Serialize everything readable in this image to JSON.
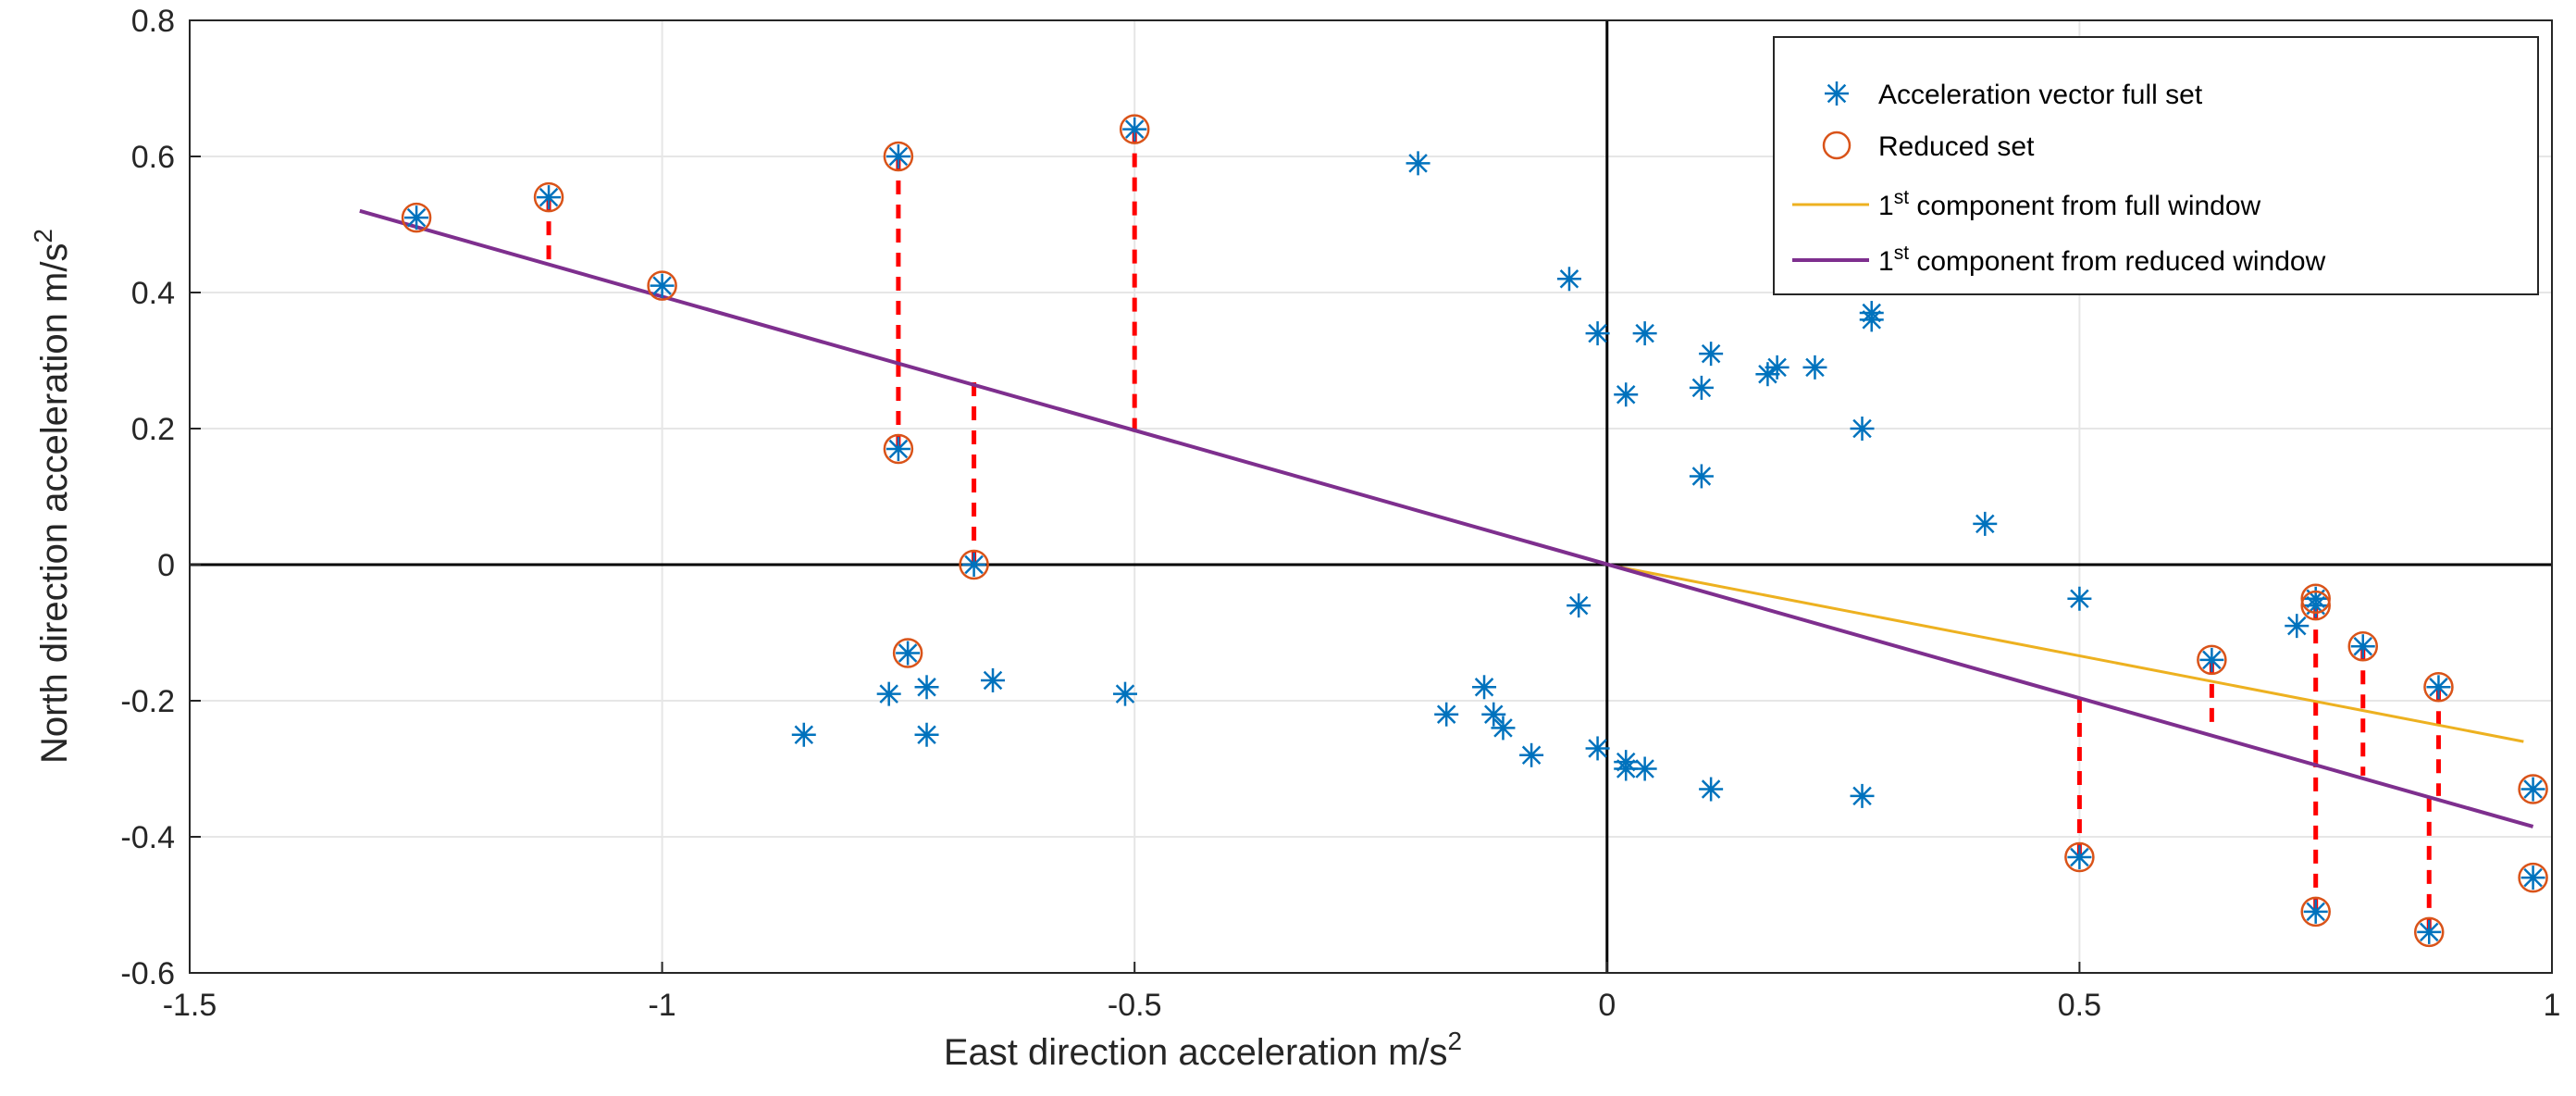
{
  "chart_data": {
    "type": "scatter",
    "title": "",
    "xlabel": "East direction acceleration m/s",
    "xlabel_sup": "2",
    "ylabel": "North direction acceleration m/s",
    "ylabel_sup": "2",
    "xlim": [
      -1.5,
      1.0
    ],
    "ylim": [
      -0.6,
      0.8
    ],
    "xticks": [
      -1.5,
      -1.0,
      -0.5,
      0.0,
      0.5,
      1.0
    ],
    "xtick_labels": [
      "-1.5",
      "-1",
      "-0.5",
      "0",
      "0.5",
      "1"
    ],
    "yticks": [
      -0.6,
      -0.4,
      -0.2,
      0.0,
      0.2,
      0.4,
      0.6,
      0.8
    ],
    "ytick_labels": [
      "-0.6",
      "-0.4",
      "-0.2",
      "0",
      "0.2",
      "0.4",
      "0.6",
      "0.8"
    ],
    "grid": true,
    "legend_position": "top-right",
    "colors": {
      "full_set": "#0072BD",
      "reduced_set": "#D95319",
      "full_component": "#EDB120",
      "reduced_component": "#7E2F8E",
      "residual": "#FF0000",
      "axis": "#000000",
      "grid": "#e6e6e6"
    },
    "legend": [
      {
        "label": "Acceleration vector full set"
      },
      {
        "label": "Reduced set"
      },
      {
        "label_pre": "1",
        "label_sup": "st",
        "label_post": " component from full window"
      },
      {
        "label_pre": "1",
        "label_sup": "st",
        "label_post": " component from reduced window"
      }
    ],
    "series": [
      {
        "name": "Acceleration vector full set",
        "marker": "asterisk",
        "points": [
          [
            -0.2,
            0.59
          ],
          [
            -0.04,
            0.42
          ],
          [
            -0.01,
            0.34
          ],
          [
            0.04,
            0.34
          ],
          [
            0.02,
            0.25
          ],
          [
            0.11,
            0.31
          ],
          [
            0.1,
            0.26
          ],
          [
            0.17,
            0.28
          ],
          [
            0.18,
            0.29
          ],
          [
            0.22,
            0.29
          ],
          [
            0.28,
            0.37
          ],
          [
            0.28,
            0.36
          ],
          [
            0.27,
            0.2
          ],
          [
            0.1,
            0.13
          ],
          [
            0.4,
            0.06
          ],
          [
            0.5,
            -0.05
          ],
          [
            -0.03,
            -0.06
          ],
          [
            -0.85,
            -0.25
          ],
          [
            -0.76,
            -0.19
          ],
          [
            -0.72,
            -0.18
          ],
          [
            -0.72,
            -0.25
          ],
          [
            -0.65,
            -0.17
          ],
          [
            -0.51,
            -0.19
          ],
          [
            -0.17,
            -0.22
          ],
          [
            -0.13,
            -0.18
          ],
          [
            -0.12,
            -0.22
          ],
          [
            -0.11,
            -0.24
          ],
          [
            -0.08,
            -0.28
          ],
          [
            -0.01,
            -0.27
          ],
          [
            0.02,
            -0.29
          ],
          [
            0.02,
            -0.3
          ],
          [
            0.04,
            -0.3
          ],
          [
            0.11,
            -0.33
          ],
          [
            0.27,
            -0.34
          ],
          [
            0.73,
            -0.09
          ],
          [
            -1.26,
            0.51
          ],
          [
            -1.12,
            0.54
          ],
          [
            -1.0,
            0.41
          ],
          [
            -0.75,
            0.6
          ],
          [
            -0.75,
            0.17
          ],
          [
            -0.67,
            0.0
          ],
          [
            -0.74,
            -0.13
          ],
          [
            -0.5,
            0.64
          ],
          [
            0.5,
            -0.43
          ],
          [
            0.64,
            -0.14
          ],
          [
            0.75,
            -0.05
          ],
          [
            0.75,
            -0.06
          ],
          [
            0.8,
            -0.12
          ],
          [
            0.88,
            -0.18
          ],
          [
            0.98,
            -0.33
          ],
          [
            0.98,
            -0.46
          ],
          [
            0.75,
            -0.51
          ],
          [
            0.87,
            -0.54
          ]
        ]
      },
      {
        "name": "Reduced set",
        "marker": "circle",
        "points": [
          [
            -1.26,
            0.51
          ],
          [
            -1.12,
            0.54
          ],
          [
            -1.0,
            0.41
          ],
          [
            -0.75,
            0.6
          ],
          [
            -0.75,
            0.17
          ],
          [
            -0.67,
            0.0
          ],
          [
            -0.74,
            -0.13
          ],
          [
            -0.5,
            0.64
          ],
          [
            0.5,
            -0.43
          ],
          [
            0.64,
            -0.14
          ],
          [
            0.75,
            -0.05
          ],
          [
            0.75,
            -0.06
          ],
          [
            0.8,
            -0.12
          ],
          [
            0.88,
            -0.18
          ],
          [
            0.98,
            -0.33
          ],
          [
            0.98,
            -0.46
          ],
          [
            0.75,
            -0.51
          ],
          [
            0.87,
            -0.54
          ]
        ]
      },
      {
        "name": "1st component from full window",
        "type": "line",
        "points": [
          [
            0.0,
            0.0
          ],
          [
            0.97,
            -0.26
          ]
        ]
      },
      {
        "name": "1st component from reduced window",
        "type": "line",
        "points": [
          [
            -1.32,
            0.52
          ],
          [
            0.98,
            -0.385
          ]
        ]
      }
    ],
    "residuals": [
      [
        -1.12,
        0.54,
        0.44
      ],
      [
        -0.75,
        0.6,
        0.295
      ],
      [
        -0.75,
        0.17,
        0.295
      ],
      [
        -0.67,
        0.0,
        0.27
      ],
      [
        -0.5,
        0.64,
        0.195
      ],
      [
        0.5,
        -0.43,
        -0.195
      ],
      [
        0.64,
        -0.14,
        -0.245
      ],
      [
        0.75,
        -0.06,
        -0.29
      ],
      [
        0.75,
        -0.51,
        -0.29
      ],
      [
        0.8,
        -0.12,
        -0.31
      ],
      [
        0.88,
        -0.18,
        -0.34
      ],
      [
        0.87,
        -0.54,
        -0.34
      ]
    ]
  }
}
